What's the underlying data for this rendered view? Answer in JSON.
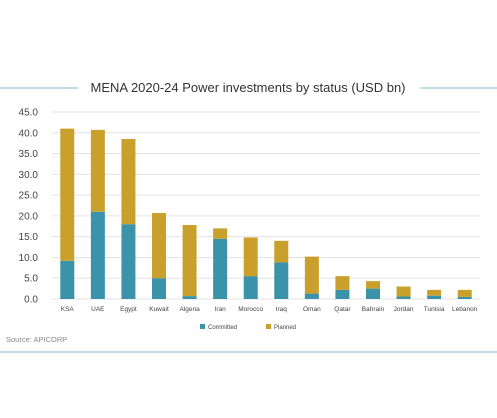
{
  "chart_data": {
    "type": "bar",
    "stacked": true,
    "title": "MENA 2020-24 Power investments by status (USD bn)",
    "categories": [
      "KSA",
      "UAE",
      "Egypt",
      "Kuwait",
      "Algeria",
      "Iran",
      "Morocco",
      "Iraq",
      "Oman",
      "Qatar",
      "Bahrain",
      "Jordan",
      "Tunisia",
      "Lebanon"
    ],
    "series": [
      {
        "name": "Committed",
        "color": "#3a93a8",
        "values": [
          9.2,
          21.0,
          18.0,
          5.0,
          0.7,
          14.5,
          5.5,
          8.8,
          1.3,
          2.2,
          2.5,
          0.6,
          0.8,
          0.5
        ]
      },
      {
        "name": "Planned",
        "color": "#c9a02c",
        "values": [
          31.8,
          19.7,
          20.5,
          15.7,
          17.1,
          2.5,
          9.3,
          5.2,
          8.9,
          3.3,
          1.8,
          2.4,
          1.4,
          1.7
        ]
      }
    ],
    "yticks": [
      "0.0",
      "5.0",
      "10.0",
      "15.0",
      "20.0",
      "25.0",
      "30.0",
      "35.0",
      "40.0",
      "45.0"
    ],
    "ylim": [
      0,
      45
    ],
    "grid": true,
    "legend": "bottom",
    "source": "Source: APICORP"
  },
  "colors": {
    "rule": "#7fb7c7",
    "grid": "#e3e3e3"
  }
}
